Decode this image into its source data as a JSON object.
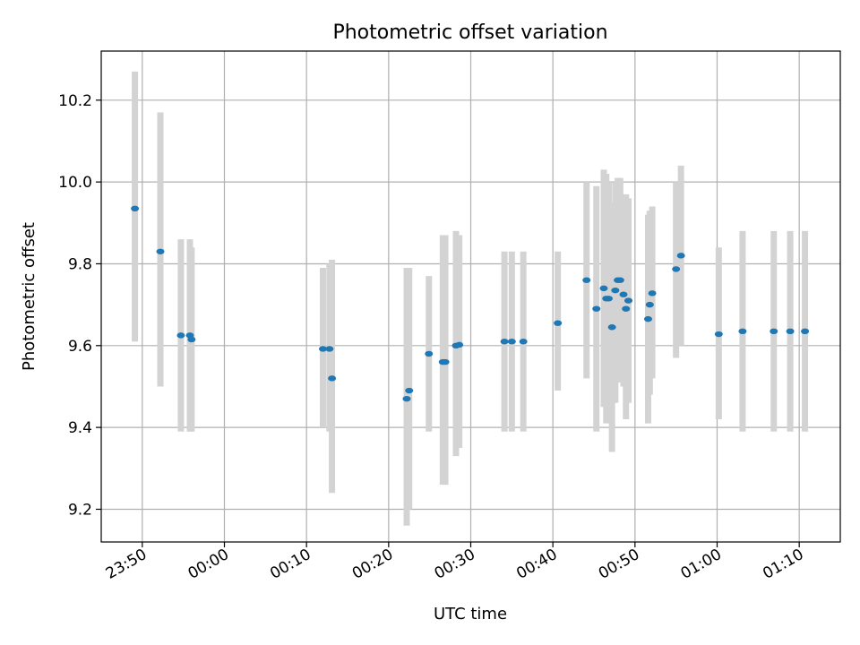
{
  "chart_data": {
    "type": "scatter",
    "title": "Photometric offset variation",
    "xlabel": "UTC time",
    "ylabel": "Photometric offset",
    "x_unit": "UTC clock time (minutes relative to 00:00)",
    "xlim": [
      -15,
      75
    ],
    "ylim": [
      9.12,
      10.32
    ],
    "grid": true,
    "x_ticks": [
      {
        "value": -10,
        "label": "23:50"
      },
      {
        "value": 0,
        "label": "00:00"
      },
      {
        "value": 10,
        "label": "00:10"
      },
      {
        "value": 20,
        "label": "00:20"
      },
      {
        "value": 30,
        "label": "00:30"
      },
      {
        "value": 40,
        "label": "00:40"
      },
      {
        "value": 50,
        "label": "00:50"
      },
      {
        "value": 60,
        "label": "01:00"
      },
      {
        "value": 70,
        "label": "01:10"
      }
    ],
    "y_ticks": [
      {
        "value": 9.2,
        "label": "9.2"
      },
      {
        "value": 9.4,
        "label": "9.4"
      },
      {
        "value": 9.6,
        "label": "9.6"
      },
      {
        "value": 9.8,
        "label": "9.8"
      },
      {
        "value": 10.0,
        "label": "10.0"
      },
      {
        "value": 10.2,
        "label": "10.2"
      }
    ],
    "colors": {
      "points": "#1f77b4",
      "errorbars": "#d3d3d3",
      "grid": "#b0b0b0"
    },
    "points": [
      {
        "x": -10.9,
        "y": 9.935,
        "low": 9.61,
        "high": 10.27
      },
      {
        "x": -7.8,
        "y": 9.83,
        "low": 9.5,
        "high": 10.17
      },
      {
        "x": -5.3,
        "y": 9.625,
        "low": 9.39,
        "high": 9.86
      },
      {
        "x": -4.2,
        "y": 9.625,
        "low": 9.39,
        "high": 9.86
      },
      {
        "x": -4.0,
        "y": 9.615,
        "low": 9.39,
        "high": 9.84
      },
      {
        "x": 12.0,
        "y": 9.592,
        "low": 9.4,
        "high": 9.79
      },
      {
        "x": 12.8,
        "y": 9.592,
        "low": 9.39,
        "high": 9.8
      },
      {
        "x": 13.1,
        "y": 9.52,
        "low": 9.24,
        "high": 9.81
      },
      {
        "x": 22.2,
        "y": 9.47,
        "low": 9.16,
        "high": 9.79
      },
      {
        "x": 22.5,
        "y": 9.49,
        "low": 9.2,
        "high": 9.79
      },
      {
        "x": 24.9,
        "y": 9.58,
        "low": 9.39,
        "high": 9.77
      },
      {
        "x": 26.6,
        "y": 9.56,
        "low": 9.26,
        "high": 9.87
      },
      {
        "x": 26.9,
        "y": 9.56,
        "low": 9.26,
        "high": 9.87
      },
      {
        "x": 28.2,
        "y": 9.6,
        "low": 9.33,
        "high": 9.88
      },
      {
        "x": 28.6,
        "y": 9.602,
        "low": 9.35,
        "high": 9.87
      },
      {
        "x": 34.1,
        "y": 9.61,
        "low": 9.39,
        "high": 9.83
      },
      {
        "x": 35.0,
        "y": 9.61,
        "low": 9.39,
        "high": 9.83
      },
      {
        "x": 36.4,
        "y": 9.61,
        "low": 9.39,
        "high": 9.83
      },
      {
        "x": 40.6,
        "y": 9.655,
        "low": 9.49,
        "high": 9.83
      },
      {
        "x": 44.1,
        "y": 9.76,
        "low": 9.52,
        "high": 10.0
      },
      {
        "x": 45.3,
        "y": 9.69,
        "low": 9.39,
        "high": 9.99
      },
      {
        "x": 46.2,
        "y": 9.74,
        "low": 9.45,
        "high": 10.03
      },
      {
        "x": 46.5,
        "y": 9.715,
        "low": 9.41,
        "high": 10.02
      },
      {
        "x": 46.8,
        "y": 9.715,
        "low": 9.43,
        "high": 10.0
      },
      {
        "x": 47.2,
        "y": 9.645,
        "low": 9.34,
        "high": 9.95
      },
      {
        "x": 47.6,
        "y": 9.735,
        "low": 9.46,
        "high": 10.0
      },
      {
        "x": 47.9,
        "y": 9.76,
        "low": 9.51,
        "high": 10.01
      },
      {
        "x": 48.2,
        "y": 9.76,
        "low": 9.51,
        "high": 10.01
      },
      {
        "x": 48.6,
        "y": 9.725,
        "low": 9.5,
        "high": 9.95
      },
      {
        "x": 48.9,
        "y": 9.69,
        "low": 9.42,
        "high": 9.97
      },
      {
        "x": 49.2,
        "y": 9.71,
        "low": 9.46,
        "high": 9.96
      },
      {
        "x": 51.6,
        "y": 9.665,
        "low": 9.41,
        "high": 9.92
      },
      {
        "x": 51.8,
        "y": 9.7,
        "low": 9.48,
        "high": 9.93
      },
      {
        "x": 52.1,
        "y": 9.728,
        "low": 9.52,
        "high": 9.94
      },
      {
        "x": 55.0,
        "y": 9.787,
        "low": 9.57,
        "high": 10.0
      },
      {
        "x": 55.6,
        "y": 9.82,
        "low": 9.6,
        "high": 10.04
      },
      {
        "x": 60.2,
        "y": 9.628,
        "low": 9.42,
        "high": 9.84
      },
      {
        "x": 63.1,
        "y": 9.635,
        "low": 9.39,
        "high": 9.88
      },
      {
        "x": 66.9,
        "y": 9.635,
        "low": 9.39,
        "high": 9.88
      },
      {
        "x": 68.9,
        "y": 9.635,
        "low": 9.39,
        "high": 9.88
      },
      {
        "x": 70.7,
        "y": 9.635,
        "low": 9.39,
        "high": 9.88
      }
    ]
  }
}
